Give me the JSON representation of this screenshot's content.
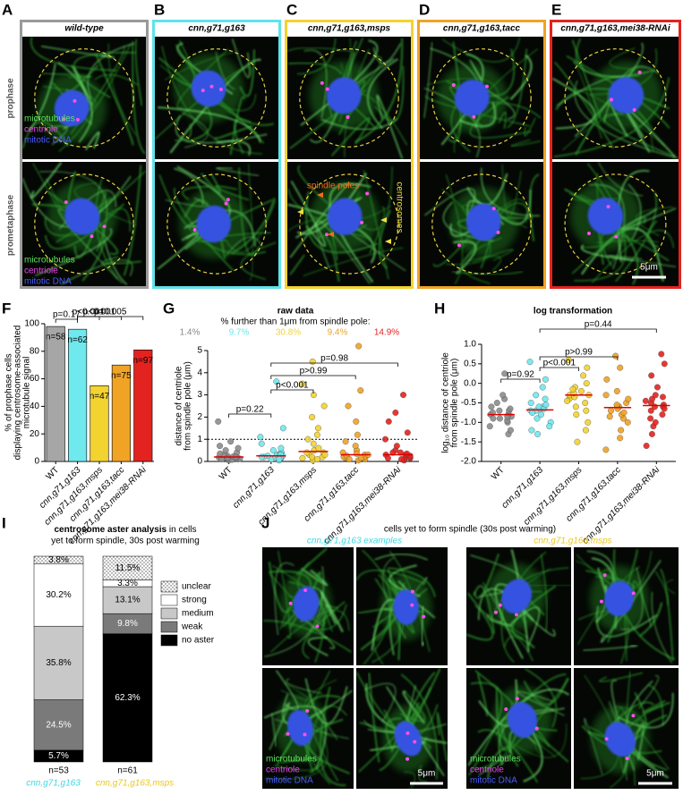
{
  "image_panels": {
    "labels": [
      "A",
      "B",
      "C",
      "D",
      "E"
    ],
    "titles": [
      "wild-type",
      "cnn,g71,g163",
      "cnn,g71,g163,msps",
      "cnn,g71,g163,tacc",
      "cnn,g71,g163,mei38-RNAi"
    ],
    "colors": [
      "#9a9a9a",
      "#5fe3ea",
      "#f2d330",
      "#f0a325",
      "#e3231f"
    ],
    "row_labels": [
      "prophase",
      "prometaphase"
    ],
    "channel_legend": [
      "microtubules",
      "centriole",
      "mitotic DNA"
    ],
    "channel_colors": [
      "#5ee65e",
      "#ee44ee",
      "#4a5cff"
    ],
    "annotations": [
      "spindle poles",
      "centrosomes"
    ],
    "scale_bar": "5μm"
  },
  "chart_data": [
    {
      "panel": "F",
      "type": "bar",
      "categories": [
        "WT",
        "cnn,g71,g163",
        "cnn,g71,g163,msps",
        "cnn,g71,g163,tacc",
        "cnn,g71,g163,mei38-RNAi"
      ],
      "values": [
        98,
        96,
        55,
        70,
        81
      ],
      "n_labels": [
        "n=58",
        "n=62",
        "n=47",
        "n=75",
        "n=97"
      ],
      "colors": [
        "#a6a6a6",
        "#6fe8ee",
        "#f2d330",
        "#f0a325",
        "#e3231f"
      ],
      "ylim": [
        0,
        100
      ],
      "yticks": [
        0,
        20,
        40,
        60,
        80,
        100
      ],
      "ylabel": [
        "% of prophase cells",
        "displaying centrosome-associated",
        "microtubule signal"
      ],
      "p_values": [
        "p=0.17",
        "p<0.001",
        "p<0.001",
        "p=0.005"
      ]
    },
    {
      "panel": "G",
      "type": "strip",
      "title": "raw data",
      "subtitle": "% further than 1μm from spindle pole:",
      "percent_labels": [
        "1.4%",
        "9.7%",
        "30.8%",
        "9.4%",
        "14.9%"
      ],
      "categories": [
        "WT",
        "cnn,g71,g163",
        "cnn,g71,g163,msps",
        "cnn,g71,g163,tacc",
        "cnn,g71,g163,mei38-RNAi"
      ],
      "groups": [
        {
          "color": "#8c8c8c",
          "values": [
            0.05,
            0.08,
            0.1,
            0.12,
            0.15,
            0.18,
            0.2,
            0.22,
            0.25,
            0.3,
            0.35,
            0.4,
            0.5,
            0.6,
            0.7,
            0.9,
            1.8,
            0.1,
            0.15,
            0.2
          ]
        },
        {
          "color": "#6fe8ee",
          "values": [
            0.05,
            0.1,
            0.15,
            0.2,
            0.25,
            0.3,
            0.35,
            0.4,
            0.5,
            0.6,
            0.8,
            1.1,
            1.5,
            3.6,
            0.2,
            0.25,
            0.3,
            0.15,
            0.1,
            0.2
          ]
        },
        {
          "color": "#f2d330",
          "values": [
            0.05,
            0.1,
            0.2,
            0.3,
            0.4,
            0.5,
            0.6,
            0.8,
            1.0,
            1.2,
            1.5,
            2.0,
            2.5,
            3.0,
            3.5,
            4.5,
            0.3,
            0.4,
            0.2,
            0.15
          ]
        },
        {
          "color": "#f0a325",
          "values": [
            0.05,
            0.1,
            0.15,
            0.2,
            0.3,
            0.4,
            0.5,
            0.7,
            0.9,
            1.2,
            1.8,
            2.5,
            3.2,
            5.2,
            0.2,
            0.25,
            0.3,
            0.15,
            0.1,
            0.35
          ]
        },
        {
          "color": "#e3231f",
          "values": [
            0.05,
            0.1,
            0.15,
            0.2,
            0.3,
            0.4,
            0.5,
            0.7,
            1.0,
            1.3,
            1.8,
            2.2,
            3.0,
            0.2,
            0.25,
            0.3,
            0.15,
            0.1,
            0.35,
            0.4
          ]
        }
      ],
      "medians": [
        0.2,
        0.25,
        0.45,
        0.3,
        0.3
      ],
      "hline": 1,
      "ylim": [
        0,
        5
      ],
      "yticks": [
        0,
        1,
        2,
        3,
        4,
        5
      ],
      "ylabel": [
        "distance of centriole",
        "from spindle pole (μm)"
      ],
      "p_values": [
        "p=0.22",
        "p<0.001",
        "p>0.99",
        "p=0.98"
      ]
    },
    {
      "panel": "H",
      "type": "strip",
      "title": "log transformation",
      "categories": [
        "WT",
        "cnn,g71,g163",
        "cnn,g71,g163,msps",
        "cnn,g71,g163,tacc",
        "cnn,g71,g163,mei38-RNAi"
      ],
      "groups": [
        {
          "color": "#8c8c8c",
          "values": [
            -1.3,
            -1.2,
            -1.1,
            -1.0,
            -0.95,
            -0.9,
            -0.85,
            -0.8,
            -0.8,
            -0.75,
            -0.7,
            -0.65,
            -0.6,
            -0.5,
            -0.4,
            -0.3,
            0.25,
            -0.85,
            -0.9,
            -0.7
          ]
        },
        {
          "color": "#6fe8ee",
          "values": [
            -1.3,
            -1.2,
            -1.0,
            -0.9,
            -0.8,
            -0.7,
            -0.65,
            -0.6,
            -0.5,
            -0.4,
            -0.3,
            -0.1,
            0.1,
            0.55,
            -0.7,
            -0.75,
            -0.6,
            -1.1,
            -0.65,
            -0.55
          ]
        },
        {
          "color": "#f2d330",
          "values": [
            -1.5,
            -1.2,
            -1.0,
            -0.8,
            -0.6,
            -0.5,
            -0.4,
            -0.3,
            -0.2,
            -0.1,
            0.0,
            0.2,
            0.4,
            0.6,
            -0.3,
            -0.35,
            -0.25,
            -0.45,
            -0.7,
            -0.15
          ]
        },
        {
          "color": "#f0a325",
          "values": [
            -1.7,
            -1.4,
            -1.2,
            -1.0,
            -0.9,
            -0.8,
            -0.7,
            -0.6,
            -0.5,
            -0.4,
            -0.2,
            0.1,
            0.4,
            0.7,
            -0.6,
            -0.65,
            -0.55,
            -0.75,
            -0.3,
            -0.85
          ]
        },
        {
          "color": "#e3231f",
          "values": [
            -1.6,
            -1.3,
            -1.1,
            -1.0,
            -0.9,
            -0.8,
            -0.7,
            -0.6,
            -0.5,
            -0.4,
            -0.3,
            -0.1,
            0.2,
            0.5,
            0.75,
            -0.55,
            -0.6,
            -0.45,
            -0.65,
            -0.35
          ]
        }
      ],
      "medians": [
        -0.8,
        -0.68,
        -0.3,
        -0.62,
        -0.57
      ],
      "ylim": [
        -2,
        1
      ],
      "yticks": [
        {
          "value": -2,
          "label": "-2.0"
        },
        -1.5,
        {
          "value": -1,
          "label": "-1.0"
        },
        -0.5,
        {
          "value": 0,
          "label": "0.0"
        },
        0.5,
        {
          "value": 1,
          "label": "1.0"
        }
      ],
      "ylabel": [
        "log₁₀ distance of centriole",
        "from spindle pole (μm)"
      ],
      "p_values": [
        "p=0.92",
        "p<0.001",
        "p>0.99",
        "p=0.44"
      ]
    },
    {
      "panel": "I",
      "type": "stacked_bar",
      "title": "centrosome aster analysis",
      "title_rest": " in cells",
      "title_line2": "yet to form spindle, 30s post warming",
      "categories": [
        "cnn,g71,g163",
        "cnn,g71,g163,msps"
      ],
      "category_colors": [
        "#3fd8e2",
        "#e8c820"
      ],
      "n_labels": [
        "n=53",
        "n=61"
      ],
      "series": [
        {
          "name": "no aster",
          "color": "#000000",
          "values": [
            5.7,
            62.3
          ],
          "value_labels": [
            "5.7%",
            "62.3%"
          ]
        },
        {
          "name": "weak",
          "color": "#7a7a7a",
          "values": [
            24.5,
            9.8
          ],
          "value_labels": [
            "24.5%",
            "9.8%"
          ]
        },
        {
          "name": "medium",
          "color": "#c8c8c8",
          "values": [
            35.8,
            13.1
          ],
          "value_labels": [
            "35.8%",
            "13.1%"
          ]
        },
        {
          "name": "strong",
          "color": "#ffffff",
          "values": [
            30.2,
            3.3
          ],
          "value_labels": [
            "30.2%",
            "3.3%"
          ]
        },
        {
          "name": "unclear",
          "color": "url(#dots)",
          "values": [
            3.8,
            11.5
          ],
          "value_labels": [
            "3.8%",
            "11.5%"
          ]
        }
      ]
    }
  ],
  "panel_j": {
    "label": "J",
    "title": "cells yet to form spindle (30s post warming)",
    "subtitles": [
      "cnn,g71,g163 examples",
      "cnn,g71,g163,msps"
    ]
  }
}
